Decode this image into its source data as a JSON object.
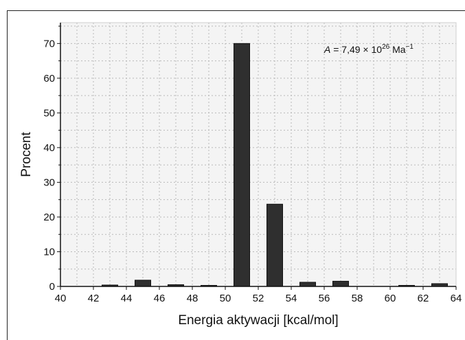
{
  "chart_data": {
    "type": "bar",
    "xlabel": "Energia aktywacji [kcal/mol]",
    "ylabel": "Procent",
    "annotation": {
      "prefix": "A",
      "text": " = 7,49 × 10",
      "exponent": "26",
      "unit": " Ma",
      "unit_exponent": "−1"
    },
    "xlim": [
      40,
      64
    ],
    "ylim": [
      0,
      76
    ],
    "xticks": [
      40,
      42,
      44,
      46,
      48,
      50,
      52,
      54,
      56,
      58,
      60,
      62,
      64
    ],
    "yticks": [
      0,
      10,
      20,
      30,
      40,
      50,
      60,
      70
    ],
    "bar_width": 1.0,
    "x": [
      43,
      45,
      47,
      49,
      51,
      53,
      55,
      57,
      61,
      63
    ],
    "values": [
      0.4,
      1.8,
      0.5,
      0.3,
      70,
      23.7,
      1.2,
      1.5,
      0.3,
      0.8
    ],
    "grid": true,
    "colors": {
      "bar": "#2f2f2f",
      "plot_bg": "#f4f4f4",
      "grid": "#b8b8b8"
    }
  }
}
